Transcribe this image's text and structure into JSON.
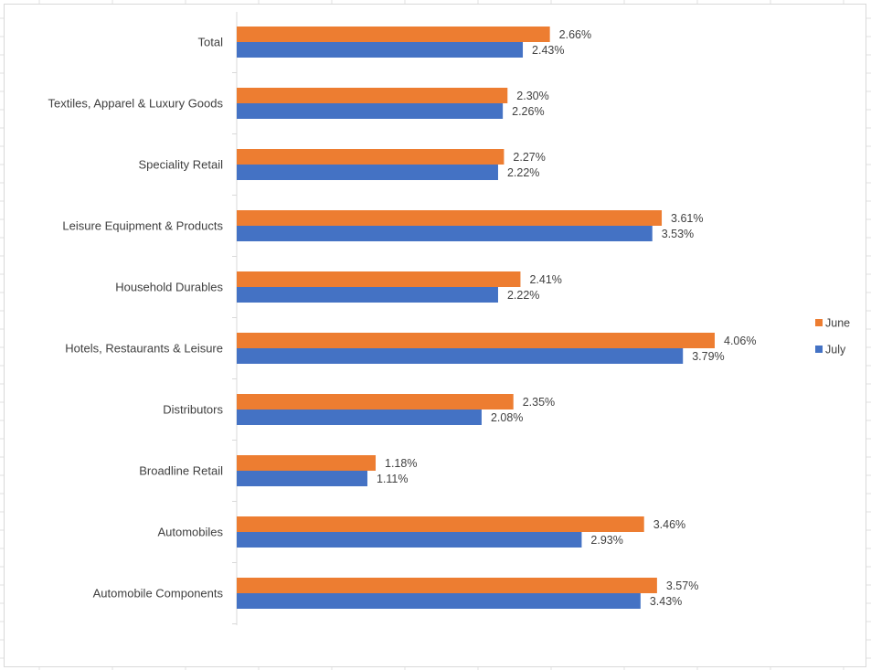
{
  "chart_data": {
    "type": "bar",
    "orientation": "horizontal",
    "title": "",
    "xlabel": "",
    "ylabel": "",
    "categories": [
      "Total",
      "Textiles, Apparel & Luxury Goods",
      "Speciality Retail",
      "Leisure Equipment & Products",
      "Household Durables",
      "Hotels, Restaurants & Leisure",
      "Distributors",
      "Broadline Retail",
      "Automobiles",
      "Automobile Components"
    ],
    "series": [
      {
        "name": "June",
        "color": "#ED7D31",
        "values": [
          2.66,
          2.3,
          2.27,
          3.61,
          2.41,
          4.06,
          2.35,
          1.18,
          3.46,
          3.57
        ],
        "labels": [
          "2.66%",
          "2.30%",
          "2.27%",
          "3.61%",
          "2.41%",
          "4.06%",
          "2.35%",
          "1.18%",
          "3.46%",
          "3.57%"
        ]
      },
      {
        "name": "July",
        "color": "#4472C4",
        "values": [
          2.43,
          2.26,
          2.22,
          3.53,
          2.22,
          3.79,
          2.08,
          1.11,
          2.93,
          3.43
        ],
        "labels": [
          "2.43%",
          "2.26%",
          "2.22%",
          "3.53%",
          "2.22%",
          "3.79%",
          "2.08%",
          "1.11%",
          "2.93%",
          "3.43%"
        ]
      }
    ],
    "xlim": [
      0,
      4.5
    ],
    "grid": false,
    "legend_position": "right"
  }
}
